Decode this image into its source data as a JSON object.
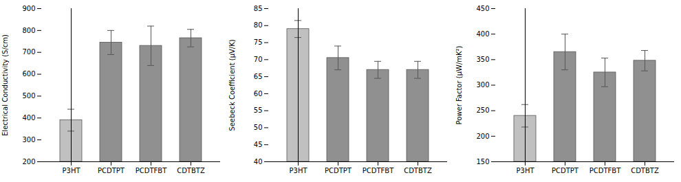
{
  "chart_data": [
    {
      "type": "bar",
      "categories": [
        "P3HT",
        "PCDTPT",
        "PCDTFBT",
        "CDTBTZ"
      ],
      "values": [
        390,
        745,
        730,
        765
      ],
      "errors": [
        50,
        55,
        90,
        40
      ],
      "colors": [
        "#c0c0c0",
        "#909090",
        "#909090",
        "#909090"
      ],
      "ylabel": "Electrical Conductivity (S/cm)",
      "ylim": [
        200,
        900
      ],
      "yticks": [
        200,
        300,
        400,
        500,
        600,
        700,
        800,
        900
      ],
      "grid": false
    },
    {
      "type": "bar",
      "categories": [
        "P3HT",
        "PCDTPT",
        "PCDTFBT",
        "CDTBTZ"
      ],
      "values": [
        79,
        70.5,
        67,
        67
      ],
      "errors": [
        2.5,
        3.5,
        2.5,
        2.5
      ],
      "colors": [
        "#c0c0c0",
        "#909090",
        "#909090",
        "#909090"
      ],
      "ylabel": "Seebeck Coefficient (μV/K)",
      "ylim": [
        40,
        85
      ],
      "yticks": [
        40,
        45,
        50,
        55,
        60,
        65,
        70,
        75,
        80,
        85
      ],
      "grid": false
    },
    {
      "type": "bar",
      "categories": [
        "P3HT",
        "PCDTPT",
        "PCDTFBT",
        "CDTBTZ"
      ],
      "values": [
        240,
        365,
        325,
        348
      ],
      "errors": [
        22,
        35,
        28,
        20
      ],
      "colors": [
        "#c0c0c0",
        "#909090",
        "#909090",
        "#909090"
      ],
      "ylabel": "Power Factor (μW/mK²)",
      "ylim": [
        150,
        450
      ],
      "yticks": [
        150,
        200,
        250,
        300,
        350,
        400,
        450
      ],
      "grid": false
    }
  ]
}
